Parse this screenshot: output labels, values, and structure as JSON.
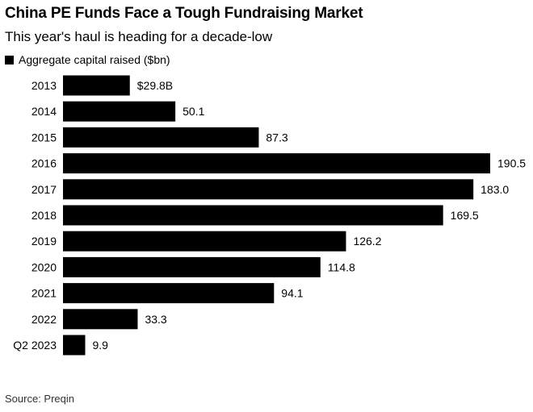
{
  "title": "China PE Funds Face a Tough Fundraising Market",
  "subtitle": "This year's haul is heading for a decade-low",
  "legend": {
    "label": "Aggregate capital raised ($bn)",
    "color": "#000000"
  },
  "source": "Source: Preqin",
  "chart_data": {
    "type": "bar",
    "orientation": "horizontal",
    "title": "China PE Funds Face a Tough Fundraising Market",
    "subtitle": "This year's haul is heading for a decade-low",
    "categories": [
      "2013",
      "2014",
      "2015",
      "2016",
      "2017",
      "2018",
      "2019",
      "2020",
      "2021",
      "2022",
      "Q2 2023"
    ],
    "series": [
      {
        "name": "Aggregate capital raised ($bn)",
        "color": "#000000",
        "values": [
          29.8,
          50.1,
          87.3,
          190.5,
          183.0,
          169.5,
          126.2,
          114.8,
          94.1,
          33.3,
          9.9
        ]
      }
    ],
    "data_labels": [
      "$29.8B",
      "50.1",
      "87.3",
      "190.5",
      "183.0",
      "169.5",
      "126.2",
      "114.8",
      "94.1",
      "33.3",
      "9.9"
    ],
    "xlim": [
      0,
      190.5
    ],
    "grid": false,
    "legend_position": "top-left"
  }
}
